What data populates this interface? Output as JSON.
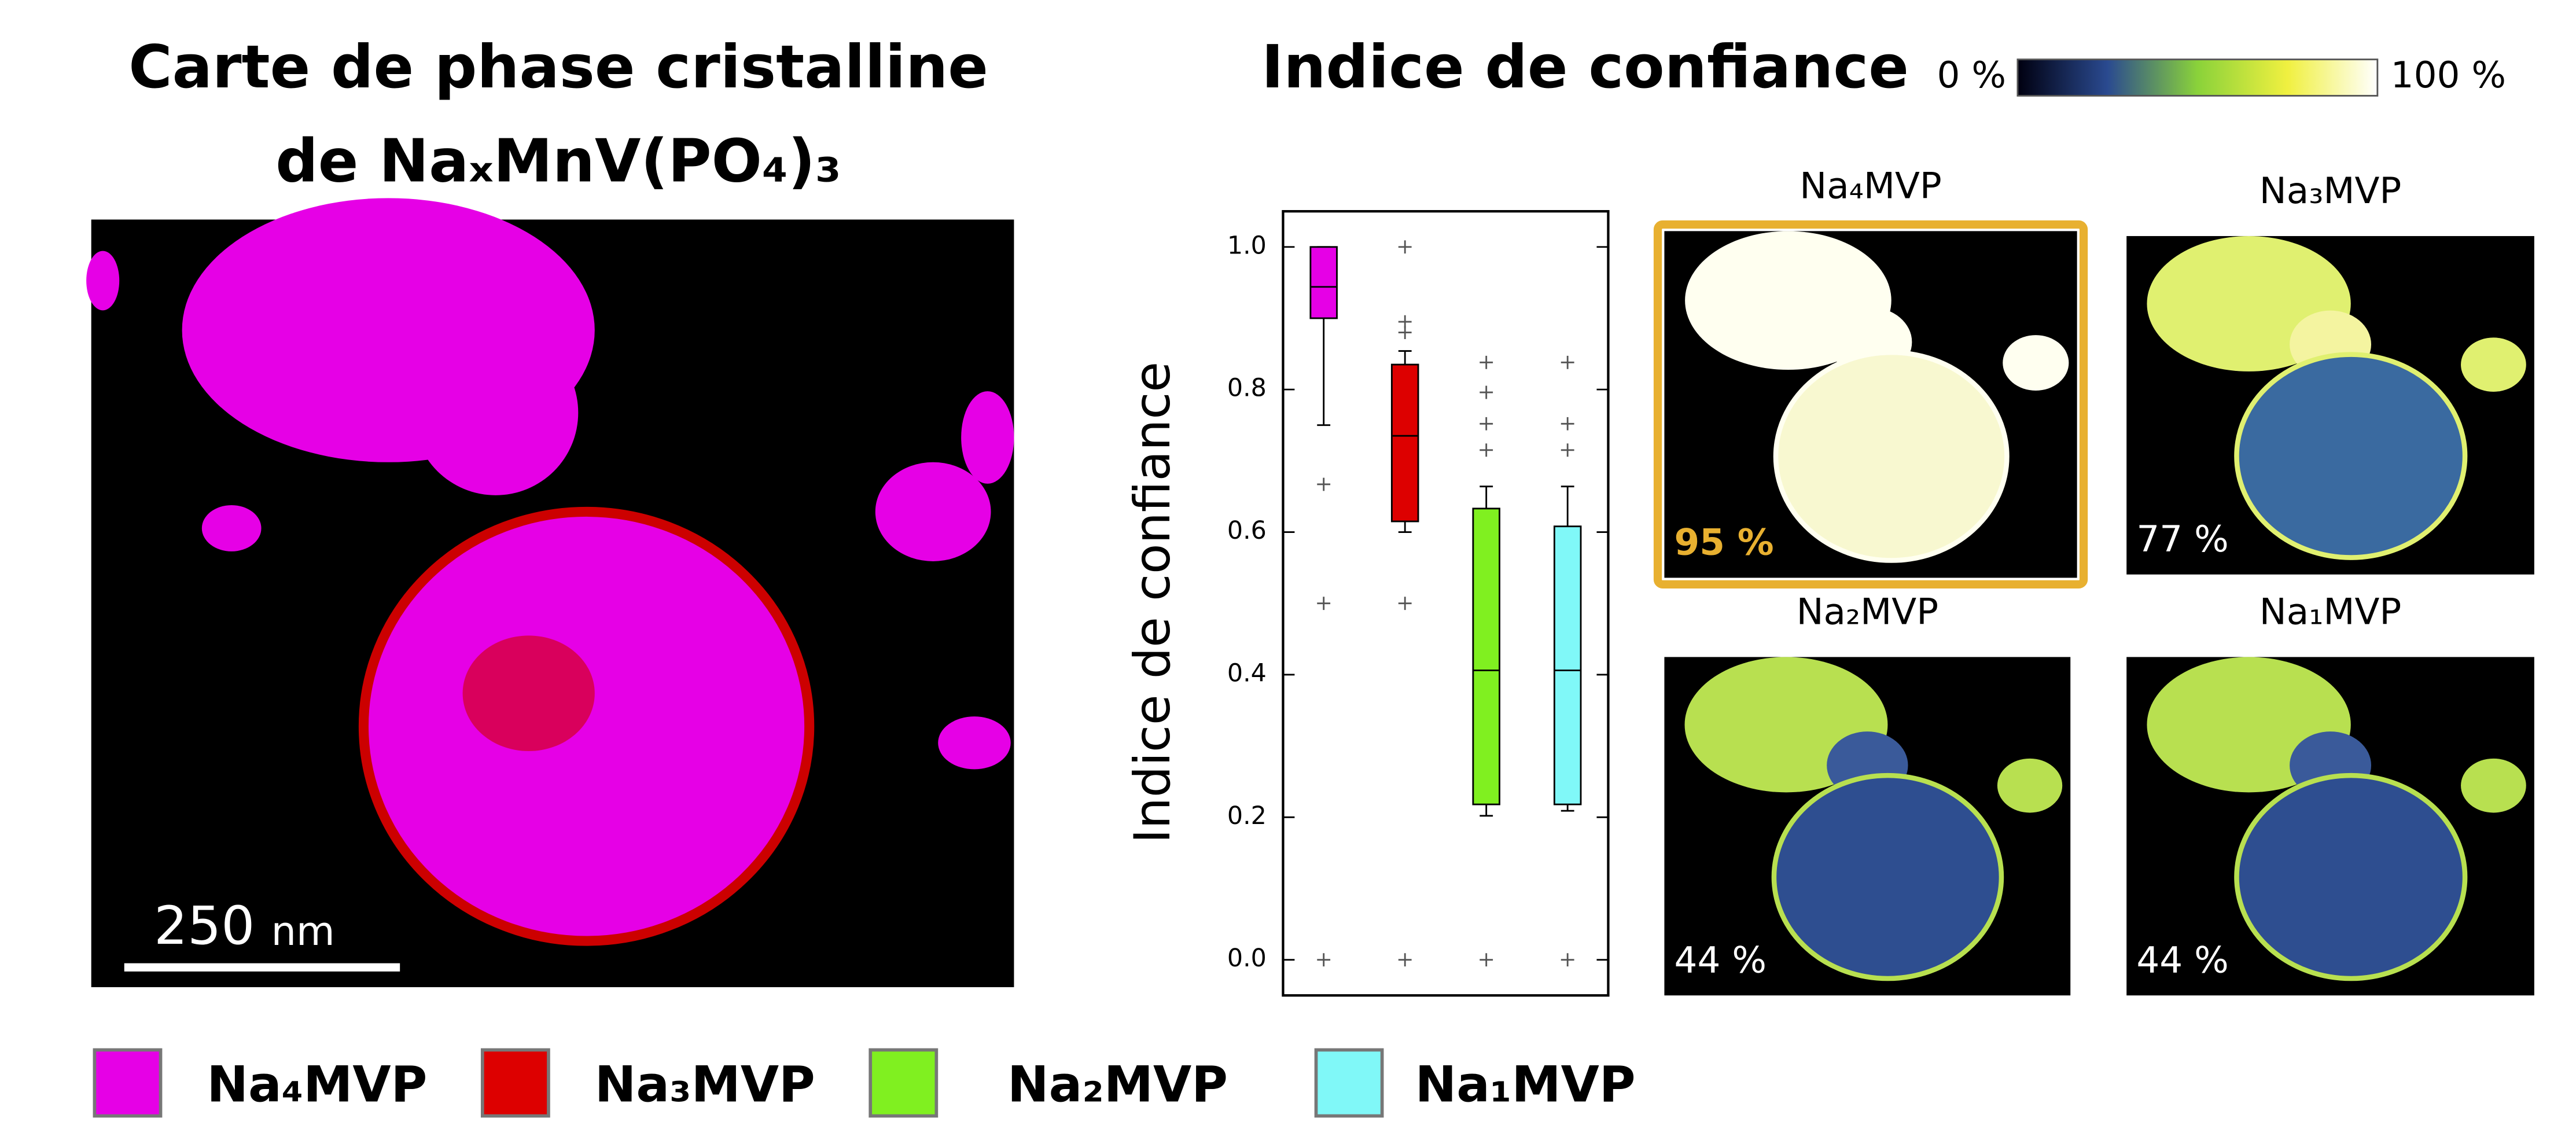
{
  "left_panel": {
    "title_line1": "Carte de phase cristalline",
    "title_line2": "de NaₓMnV(PO₄)₃",
    "scale_value": "250",
    "scale_unit": "nm"
  },
  "right_panel": {
    "title": "Indice de confiance",
    "colorbar_min": "0 %",
    "colorbar_max": "100 %",
    "maps": [
      {
        "label": "Na₄MVP",
        "percent": "95 %"
      },
      {
        "label": "Na₃MVP",
        "percent": "77 %"
      },
      {
        "label": "Na₂MVP",
        "percent": "44 %"
      },
      {
        "label": "Na₁MVP",
        "percent": "44 %"
      }
    ]
  },
  "chart_data": {
    "type": "box",
    "ylabel": "Indice de confiance",
    "ylim": [
      -0.05,
      1.05
    ],
    "yticks": [
      {
        "value": 0,
        "label": "0.0"
      },
      0.2,
      0.4,
      0.6,
      0.8,
      {
        "value": 1,
        "label": "1.0"
      }
    ],
    "series": [
      {
        "name": "Na₄MVP",
        "color": "#e600e6",
        "whisker_low": 0.75,
        "q1": 0.9,
        "median": 0.944,
        "q3": 1.0,
        "whisker_high": 1.0,
        "outliers": [
          0.667,
          0.5,
          0.0
        ]
      },
      {
        "name": "Na₃MVP",
        "color": "#dd0000",
        "whisker_low": 0.6,
        "q1": 0.615,
        "median": 0.735,
        "q3": 0.835,
        "whisker_high": 0.854,
        "outliers": [
          1.0,
          0.895,
          0.88,
          0.5,
          0.0
        ]
      },
      {
        "name": "Na₂MVP",
        "color": "#80f020",
        "whisker_low": 0.202,
        "q1": 0.218,
        "median": 0.406,
        "q3": 0.633,
        "whisker_high": 0.664,
        "outliers": [
          0.838,
          0.796,
          0.752,
          0.715,
          0.0
        ]
      },
      {
        "name": "Na₁MVP",
        "color": "#80f8f8",
        "whisker_low": 0.209,
        "q1": 0.218,
        "median": 0.406,
        "q3": 0.608,
        "whisker_high": 0.664,
        "outliers": [
          0.838,
          0.752,
          0.715,
          0.0
        ]
      }
    ]
  }
}
